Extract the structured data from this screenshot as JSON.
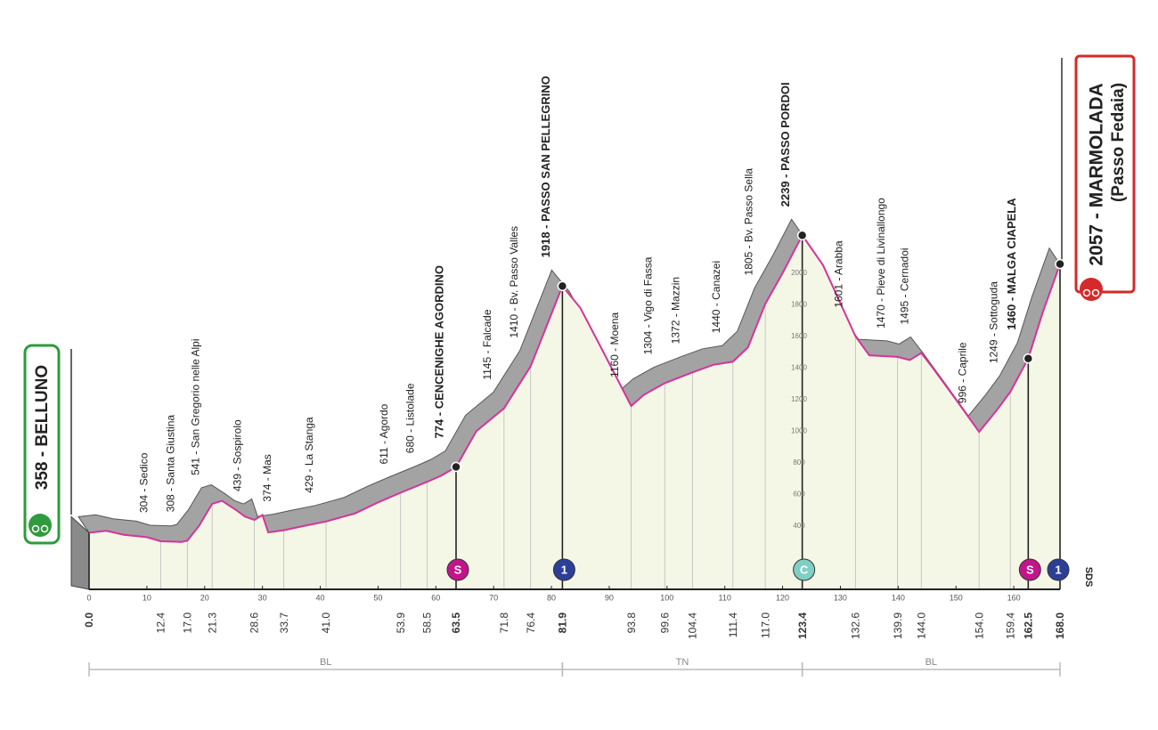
{
  "chart_data": {
    "type": "area",
    "x": [
      0,
      3,
      6,
      10,
      12.4,
      16,
      17,
      19,
      21.3,
      23,
      25.5,
      27,
      28.6,
      30,
      31,
      33.7,
      37,
      41,
      46,
      50,
      53.9,
      58.5,
      61,
      63.5,
      67,
      71.8,
      76.4,
      79,
      81.9,
      85,
      89,
      93.8,
      96,
      99.6,
      104.4,
      108,
      111.4,
      114,
      117,
      120,
      123.4,
      127,
      132.6,
      135,
      139.9,
      142,
      144,
      146,
      150,
      154,
      157,
      159.4,
      162.5,
      165,
      168
    ],
    "values": [
      358,
      370,
      345,
      330,
      304,
      300,
      308,
      400,
      541,
      560,
      500,
      460,
      439,
      470,
      360,
      374,
      400,
      429,
      480,
      550,
      611,
      680,
      720,
      774,
      1000,
      1145,
      1410,
      1650,
      1918,
      1780,
      1500,
      1160,
      1230,
      1304,
      1372,
      1420,
      1440,
      1530,
      1805,
      2000,
      2239,
      2050,
      1601,
      1480,
      1470,
      1450,
      1495,
      1400,
      1200,
      996,
      1130,
      1249,
      1460,
      1750,
      2057
    ],
    "color": "#d6339b",
    "fill": "#f5f7e6",
    "shadow": "#a3a3a3",
    "xlim": [
      0,
      168
    ],
    "ylim": [
      0,
      2500
    ],
    "xticks": [
      0,
      10,
      20,
      30,
      40,
      50,
      60,
      70,
      80,
      90,
      100,
      110,
      120,
      130,
      140,
      150,
      160
    ],
    "yticks": [
      400,
      600,
      800,
      1000,
      1200,
      1400,
      1600,
      1800,
      2000
    ],
    "start": {
      "label": "358 - BELLUNO"
    },
    "finish": {
      "label": "2057 - MARMOLADA",
      "sublabel": "(Passo Fedaia)"
    },
    "waypoints": [
      {
        "km": {
          "value": 0,
          "label": "0.0"
        },
        "altitude": 358,
        "bold": true
      },
      {
        "km": 12.4,
        "altitude": 304,
        "label": "304 - Sedico"
      },
      {
        "km": {
          "value": 17,
          "label": "17.0"
        },
        "altitude": 308,
        "label": "308 - Santa Giustina"
      },
      {
        "km": 21.3,
        "altitude": 541,
        "label": "541 - San Gregorio nelle Alpi"
      },
      {
        "km": 28.6,
        "altitude": 439,
        "label": "439 - Sospirolo"
      },
      {
        "km": 33.7,
        "altitude": 374,
        "label": "374 - Mas"
      },
      {
        "km": {
          "value": 41,
          "label": "41.0"
        },
        "altitude": 429,
        "label": "429 - La Stanga"
      },
      {
        "km": 53.9,
        "altitude": 611,
        "label": "611 - Agordo"
      },
      {
        "km": 58.5,
        "altitude": 680,
        "label": "680 - Listolade"
      },
      {
        "km": 63.5,
        "altitude": 774,
        "label": "774 - CENCENIGHE AGORDINO",
        "bold": true,
        "marker": "S"
      },
      {
        "km": 71.8,
        "altitude": 1145,
        "label": "1145 - Falcade"
      },
      {
        "km": 76.4,
        "altitude": 1410,
        "label": "1410 - Bv. Passo Valles"
      },
      {
        "km": 81.9,
        "altitude": 1918,
        "label": "1918 - PASSO SAN PELLEGRINO",
        "bold": true,
        "marker": "1"
      },
      {
        "km": 93.8,
        "altitude": 1160,
        "label": "1160 - Moena"
      },
      {
        "km": 99.6,
        "altitude": 1304,
        "label": "1304 - Vigo di Fassa"
      },
      {
        "km": 104.4,
        "altitude": 1372,
        "label": "1372 - Mazzin"
      },
      {
        "km": 111.4,
        "altitude": 1440,
        "label": "1440 - Canazei"
      },
      {
        "km": {
          "value": 117,
          "label": "117.0"
        },
        "altitude": 1805,
        "label": "1805 - Bv. Passo Sella"
      },
      {
        "km": 123.4,
        "altitude": 2239,
        "label": "2239 - PASSO PORDOI",
        "bold": true,
        "marker": "C"
      },
      {
        "km": 132.6,
        "altitude": 1601,
        "label": "1601 - Arabba"
      },
      {
        "km": 139.9,
        "altitude": 1470,
        "label": "1470 - Pieve di Livinallongo"
      },
      {
        "km": {
          "value": 144,
          "label": "144.0"
        },
        "altitude": 1495,
        "label": "1495 - Cernadoi"
      },
      {
        "km": {
          "value": 154,
          "label": "154.0"
        },
        "altitude": 996,
        "label": "996 - Caprile"
      },
      {
        "km": 159.4,
        "altitude": 1249,
        "label": "1249 - Sottoguda"
      },
      {
        "km": 162.5,
        "altitude": 1460,
        "label": "1460 - MALGA CIAPELA",
        "bold": true,
        "marker": "S"
      },
      {
        "km": {
          "value": 168,
          "label": "168.0"
        },
        "altitude": 2057,
        "bold": true,
        "marker": "1"
      }
    ],
    "regions": [
      {
        "label": "BL",
        "range": [
          0,
          81.9
        ]
      },
      {
        "label": "TN",
        "range": [
          81.9,
          123.4
        ]
      },
      {
        "label": "BL",
        "range": [
          123.4,
          168
        ]
      }
    ],
    "logo": "SDS"
  }
}
